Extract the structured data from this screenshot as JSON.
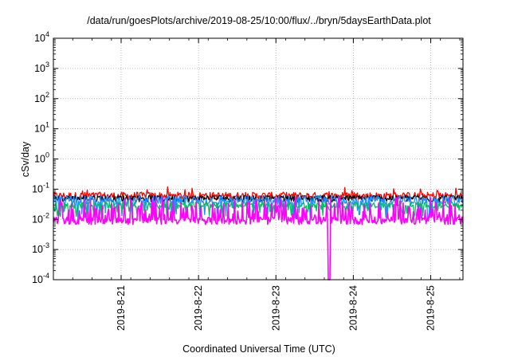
{
  "chart_data": {
    "type": "line",
    "title": "/data/run/goesPlots/archive/2019-08-25/10:00/flux/../bryn/5daysEarthData.plot",
    "xlabel": "Coordinated Universal Time (UTC)",
    "ylabel": "cSv/day",
    "yscale": "log",
    "ylim": [
      0.0001,
      10000
    ],
    "yticks": [
      {
        "base": "10",
        "exp": "4"
      },
      {
        "base": "10",
        "exp": "3"
      },
      {
        "base": "10",
        "exp": "2"
      },
      {
        "base": "10",
        "exp": "1"
      },
      {
        "base": "10",
        "exp": "0"
      },
      {
        "base": "10",
        "exp": "-1"
      },
      {
        "base": "10",
        "exp": "-2"
      },
      {
        "base": "10",
        "exp": "-3"
      },
      {
        "base": "10",
        "exp": "-4"
      }
    ],
    "xlim": [
      "2019-08-20 03:00",
      "2019-08-25 10:00"
    ],
    "xticks": [
      "2019-8-21",
      "2019-8-22",
      "2019-8-23",
      "2019-8-24",
      "2019-8-25"
    ],
    "grid": true,
    "legend": "none",
    "series": [
      {
        "color": "#ff0000",
        "time_days": [
          0,
          1,
          2,
          3,
          4,
          5.29
        ],
        "typical": [
          0.06,
          0.06,
          0.06,
          0.06,
          0.06,
          0.06
        ],
        "max": 0.12,
        "min": 0.035
      },
      {
        "color": "#000000",
        "time_days": [
          0,
          1,
          2,
          3,
          4,
          5.29
        ],
        "typical": [
          0.05,
          0.05,
          0.05,
          0.05,
          0.05,
          0.05
        ],
        "max": 0.06,
        "min": 0.03
      },
      {
        "color": "#1e90ff",
        "time_days": [
          0,
          1,
          2,
          3,
          4,
          5.29
        ],
        "typical": [
          0.04,
          0.04,
          0.04,
          0.04,
          0.04,
          0.04
        ],
        "max": 0.07,
        "min": 0.01
      },
      {
        "color": "#00c060",
        "time_days": [
          0,
          1,
          2,
          3,
          4,
          5.29
        ],
        "typical": [
          0.03,
          0.03,
          0.03,
          0.03,
          0.03,
          0.03
        ],
        "max": 0.04,
        "min": 0.012
      },
      {
        "color": "#ff00ff",
        "time_days": [
          0,
          1,
          2,
          3,
          4,
          5.29
        ],
        "typical": [
          0.009,
          0.009,
          0.009,
          0.009,
          0.009,
          0.009
        ],
        "max": 0.06,
        "min": 0.006,
        "dropout_time": "2019-08-23 16:30",
        "dropout_min": 0.0001
      }
    ]
  }
}
